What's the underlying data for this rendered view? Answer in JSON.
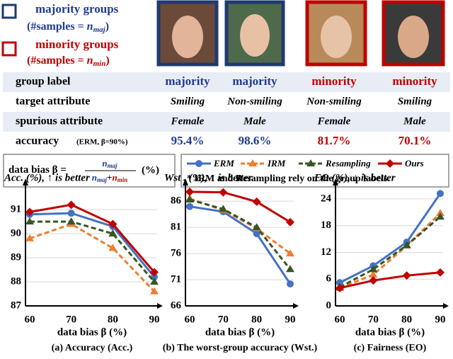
{
  "header": {
    "majority": {
      "title": "majority groups",
      "note_pre": "(#samples = ",
      "note_base": "n",
      "note_sub": "maj",
      "note_post": ")"
    },
    "minority": {
      "title": "minority groups",
      "note_pre": "(#samples = ",
      "note_base": "n",
      "note_sub": "min",
      "note_post": ")"
    }
  },
  "table": {
    "columns": [
      "majority",
      "majority",
      "minority",
      "minority"
    ],
    "rows": [
      [
        "group label",
        "majority",
        "majority",
        "minority",
        "minority"
      ],
      [
        "target attribute",
        "Smiling",
        "Non-smiling",
        "Non-smiling",
        "Smiling"
      ],
      [
        "spurious attribute",
        "Female",
        "Male",
        "Female",
        "Male"
      ],
      [
        "accuracy",
        "95.4%",
        "98.6%",
        "81.7%",
        "70.1%"
      ]
    ],
    "accuracy_note": "(ERM, β=90%)"
  },
  "formula": {
    "label": "data bias β =",
    "num_base": "n",
    "num_sub": "maj",
    "den_base1": "n",
    "den_sub1": "maj",
    "plus": "+",
    "den_base2": "n",
    "den_sub2": "min",
    "unit": "(%)"
  },
  "legend_note": "* IRM and Resampling rely on the group labels.",
  "chart_data": [
    {
      "type": "line",
      "title": "Acc. (%), ↑ is better",
      "x_label": "data bias β (%)",
      "caption": "(a) Accuracy (Acc.)",
      "categories": [
        "60",
        "70",
        "80",
        "90"
      ],
      "ylim": [
        87,
        92
      ],
      "yticks": [
        87,
        88,
        89,
        90,
        91
      ],
      "grid": true,
      "series": [
        {
          "name": "ERM",
          "color": "#4472c4",
          "values": [
            90.8,
            90.85,
            90.3,
            88.2
          ]
        },
        {
          "name": "IRM",
          "color": "#ed7d31",
          "values": [
            89.8,
            90.4,
            89.4,
            87.6
          ]
        },
        {
          "name": "Resampling",
          "color": "#375623",
          "values": [
            90.5,
            90.5,
            90.0,
            88.0
          ]
        },
        {
          "name": "Ours",
          "color": "#c00000",
          "values": [
            90.9,
            91.2,
            90.4,
            88.4
          ]
        }
      ]
    },
    {
      "type": "line",
      "title": "Wst . (%), ↑ is better",
      "x_label": "data bias β (%)",
      "caption": "(b) The worst-group accuracy (Wst.)",
      "categories": [
        "60",
        "70",
        "80",
        "90"
      ],
      "ylim": [
        66,
        89
      ],
      "yticks": [
        66,
        71,
        76,
        81,
        86
      ],
      "grid": true,
      "series": [
        {
          "color": "#4472c4",
          "values": [
            85.0,
            84.0,
            79.8,
            70.2
          ]
        },
        {
          "color": "#ed7d31",
          "values": [
            86.5,
            84.3,
            80.8,
            76.0
          ]
        },
        {
          "color": "#375623",
          "values": [
            86.3,
            84.5,
            81.0,
            73.0
          ]
        },
        {
          "color": "#c00000",
          "values": [
            87.8,
            87.7,
            85.9,
            82.0
          ]
        }
      ]
    },
    {
      "type": "line",
      "title": "EO (%), ↓ is better",
      "x_label": "data bias β (%)",
      "caption": "(c) Fairness (EO)",
      "categories": [
        "60",
        "70",
        "80",
        "90"
      ],
      "ylim": [
        0,
        27
      ],
      "yticks": [
        0,
        6,
        12,
        18,
        24
      ],
      "grid": true,
      "series": [
        {
          "color": "#4472c4",
          "values": [
            5.2,
            9.0,
            14.3,
            25.2
          ]
        },
        {
          "color": "#ed7d31",
          "values": [
            4.0,
            7.0,
            13.5,
            20.8
          ]
        },
        {
          "color": "#375623",
          "values": [
            4.2,
            8.2,
            13.6,
            20.0
          ]
        },
        {
          "color": "#c00000",
          "values": [
            4.0,
            5.7,
            6.8,
            7.5
          ]
        }
      ]
    }
  ]
}
